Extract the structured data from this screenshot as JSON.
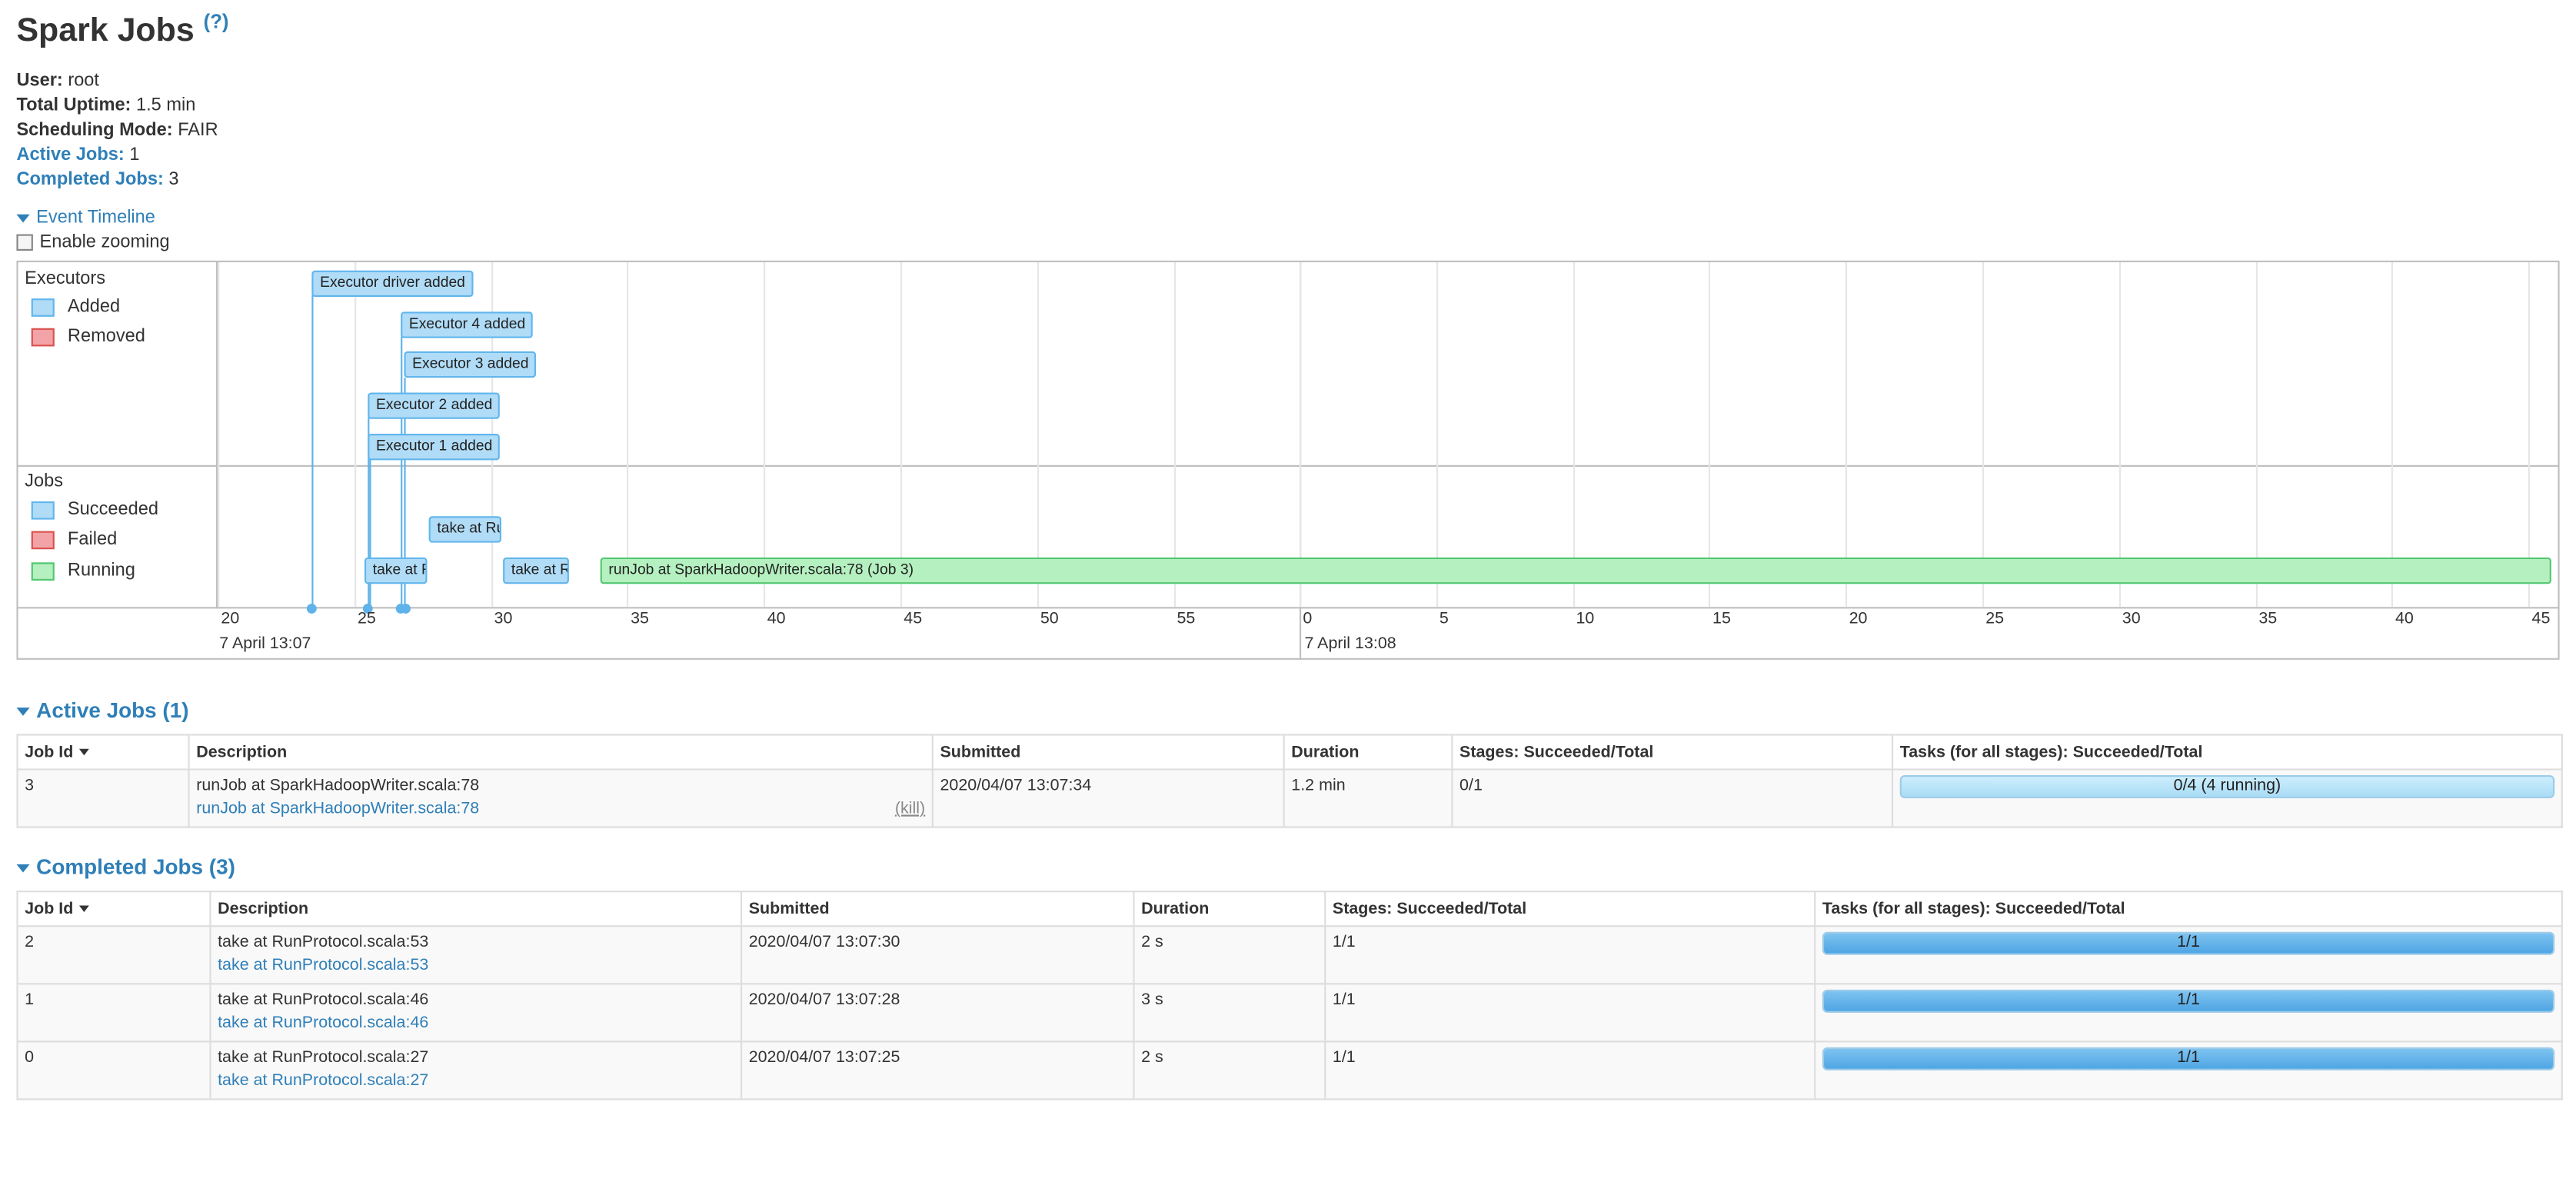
{
  "page": {
    "title": "Spark Jobs",
    "help": "(?)"
  },
  "summary": {
    "user_label": "User:",
    "user_value": "root",
    "uptime_label": "Total Uptime:",
    "uptime_value": "1.5 min",
    "mode_label": "Scheduling Mode:",
    "mode_value": "FAIR",
    "active_label": "Active Jobs:",
    "active_value": "1",
    "completed_label": "Completed Jobs:",
    "completed_value": "3"
  },
  "timeline": {
    "toggle_label": "Event Timeline",
    "zoom_label": "Enable zooming",
    "executors_label": "Executors",
    "jobs_label": "Jobs",
    "legend": {
      "added": "Added",
      "removed": "Removed",
      "succeeded": "Succeeded",
      "failed": "Failed",
      "running": "Running"
    },
    "events": {
      "driver": "Executor driver added",
      "exec4": "Executor 4 added",
      "exec3": "Executor 3 added",
      "exec2": "Executor 2 added",
      "exec1": "Executor 1 added",
      "job_take1": "take at Ru",
      "job_take0": "take at R",
      "job_take2": "take at R",
      "job_run": "runJob at SparkHadoopWriter.scala:78 (Job 3)"
    },
    "ticks_left": [
      "20",
      "25",
      "30",
      "35",
      "40",
      "45",
      "50",
      "55"
    ],
    "ticks_right": [
      "0",
      "5",
      "10",
      "15",
      "20",
      "25",
      "30",
      "35",
      "40",
      "45"
    ],
    "date_left": "7 April 13:07",
    "date_right": "7 April 13:08"
  },
  "active_jobs": {
    "heading": "Active Jobs (1)",
    "headers": [
      "Job Id",
      "Description",
      "Submitted",
      "Duration",
      "Stages: Succeeded/Total",
      "Tasks (for all stages): Succeeded/Total"
    ],
    "rows": [
      {
        "id": "3",
        "desc_main": "runJob at SparkHadoopWriter.scala:78",
        "desc_link": "runJob at SparkHadoopWriter.scala:78",
        "kill": "(kill)",
        "submitted": "2020/04/07 13:07:34",
        "duration": "1.2 min",
        "stages": "0/1",
        "tasks": "0/4 (4 running)",
        "progress": 0
      }
    ]
  },
  "completed_jobs": {
    "heading": "Completed Jobs (3)",
    "headers": [
      "Job Id",
      "Description",
      "Submitted",
      "Duration",
      "Stages: Succeeded/Total",
      "Tasks (for all stages): Succeeded/Total"
    ],
    "rows": [
      {
        "id": "2",
        "desc_main": "take at RunProtocol.scala:53",
        "desc_link": "take at RunProtocol.scala:53",
        "submitted": "2020/04/07 13:07:30",
        "duration": "2 s",
        "stages": "1/1",
        "tasks": "1/1",
        "progress": 1
      },
      {
        "id": "1",
        "desc_main": "take at RunProtocol.scala:46",
        "desc_link": "take at RunProtocol.scala:46",
        "submitted": "2020/04/07 13:07:28",
        "duration": "3 s",
        "stages": "1/1",
        "tasks": "1/1",
        "progress": 1
      },
      {
        "id": "0",
        "desc_main": "take at RunProtocol.scala:27",
        "desc_link": "take at RunProtocol.scala:27",
        "submitted": "2020/04/07 13:07:25",
        "duration": "2 s",
        "stages": "1/1",
        "tasks": "1/1",
        "progress": 1
      }
    ]
  },
  "colors": {
    "link": "#2f7fb8",
    "added": "#b0dcf7",
    "removed": "#f2a3a8",
    "succeeded": "#b0dcf7",
    "failed": "#f2a3a8",
    "running": "#b5f0c0"
  }
}
